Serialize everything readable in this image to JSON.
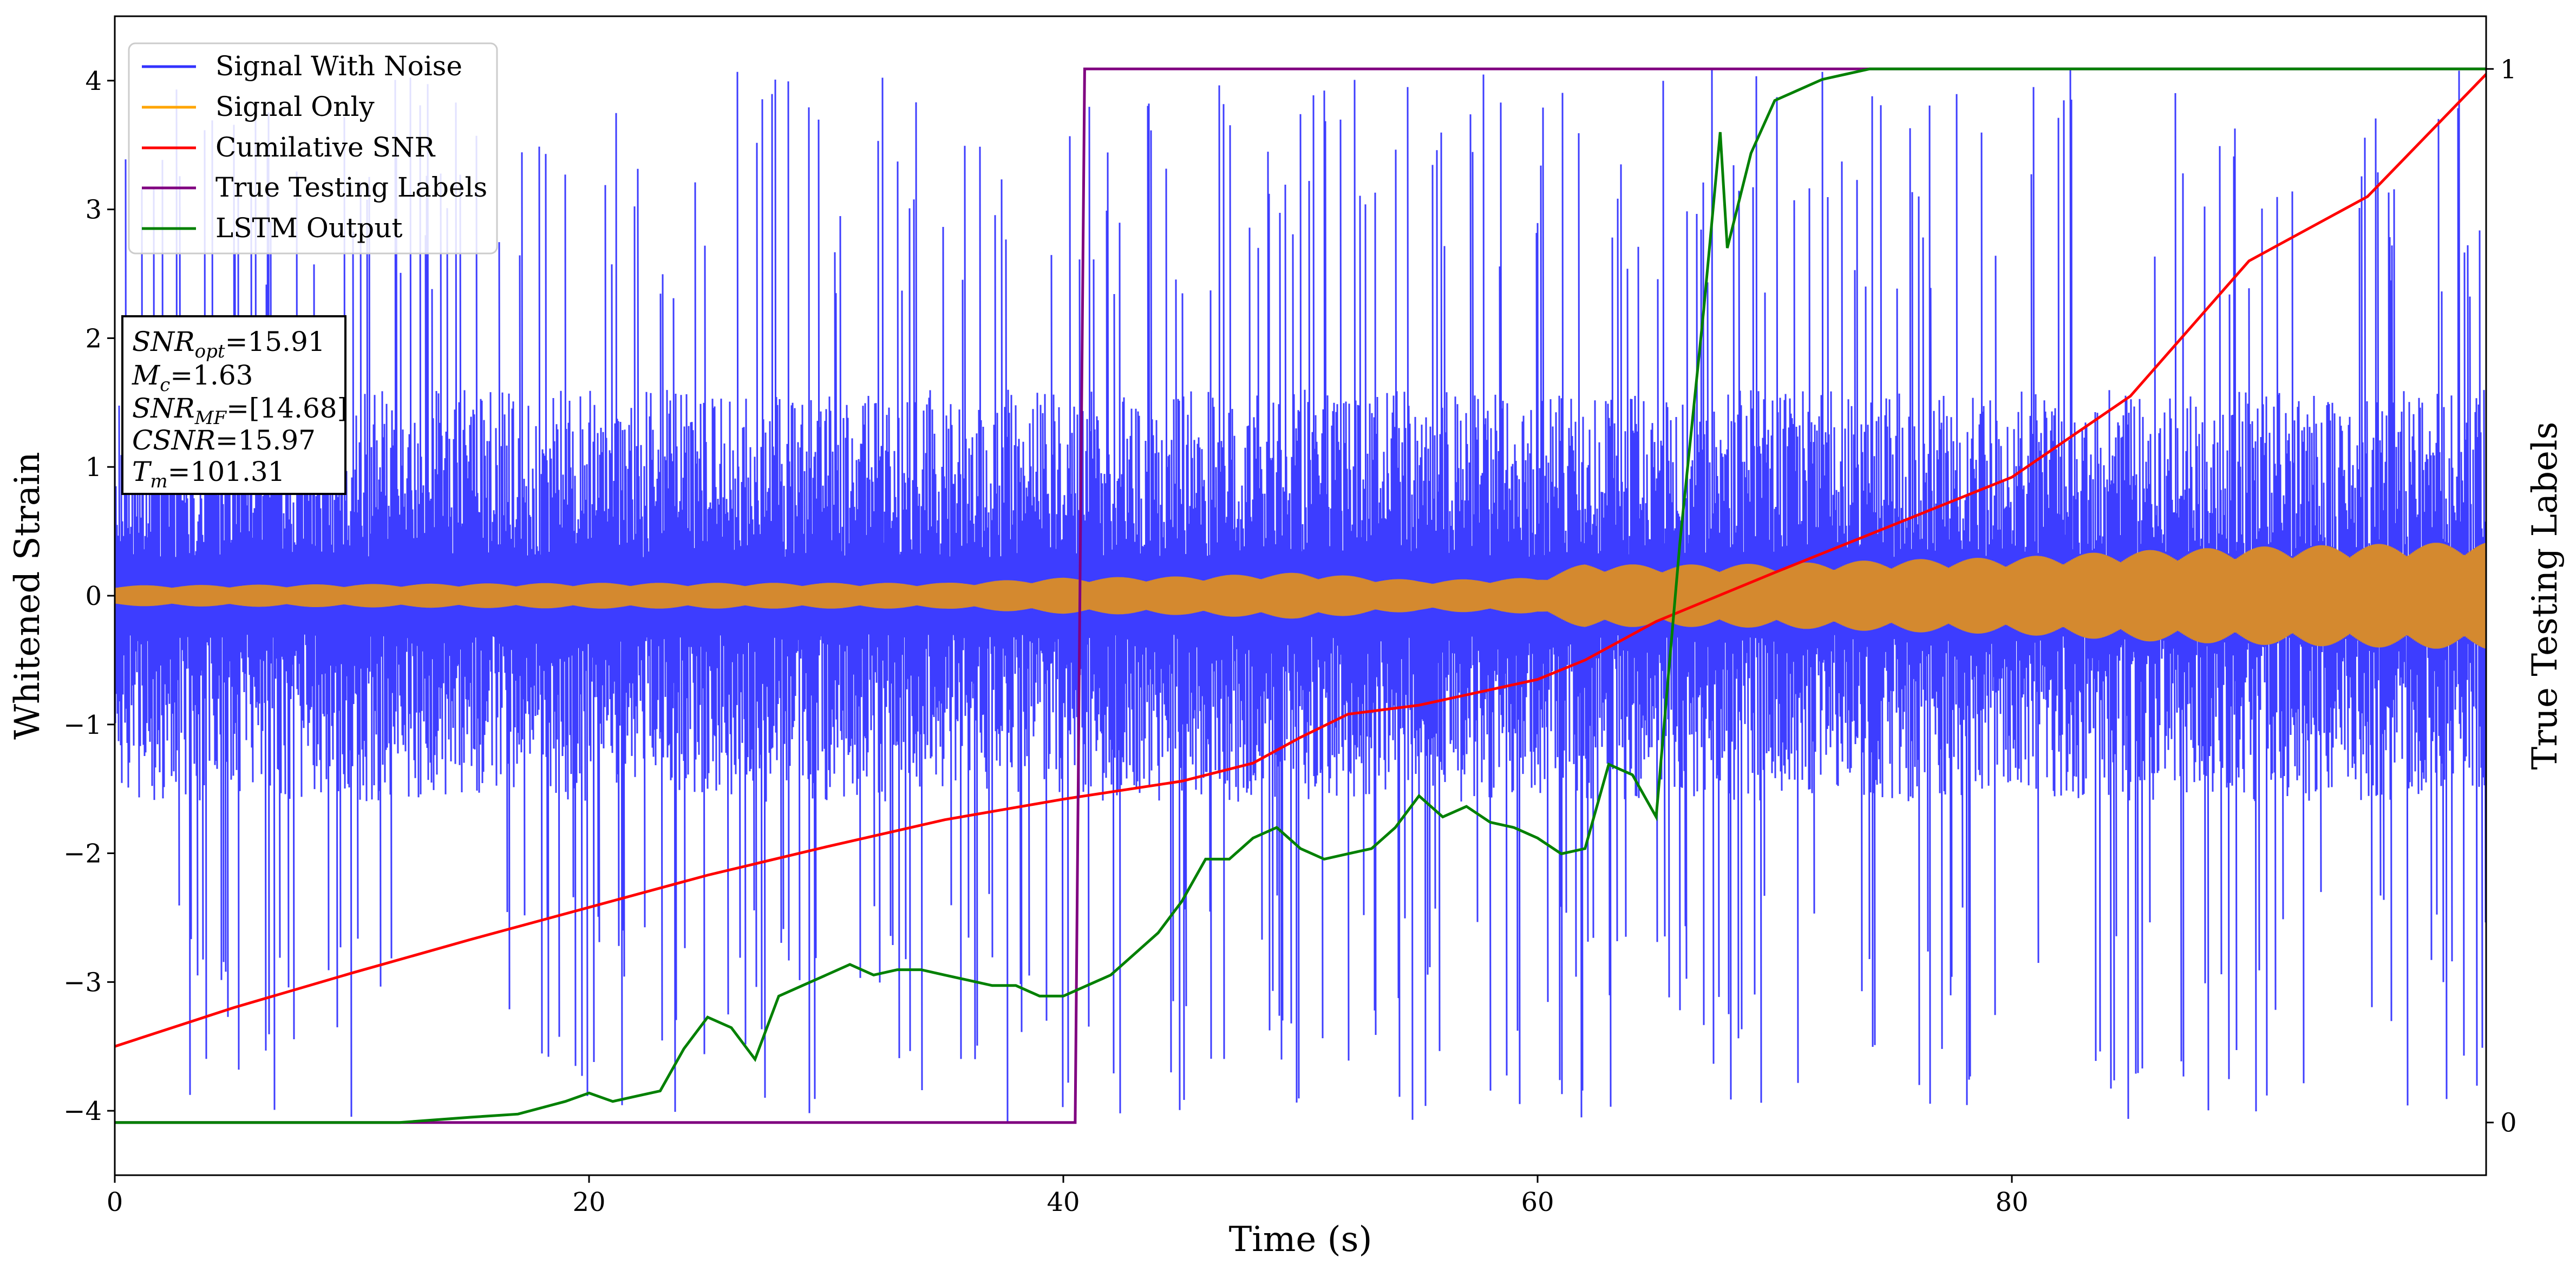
{
  "chart_data": {
    "type": "line",
    "xlabel": "Time (s)",
    "ylabel": "Whitened Strain",
    "y2label": "True Testing Labels",
    "xlim": [
      0,
      100
    ],
    "ylim": [
      -4.5,
      4.5
    ],
    "y2lim": [
      -0.05,
      1.05
    ],
    "x_ticks": [
      0,
      20,
      40,
      60,
      80
    ],
    "x_tick_labels": [
      "0",
      "20",
      "40",
      "60",
      "80"
    ],
    "y_ticks": [
      -4,
      -3,
      -2,
      -1,
      0,
      1,
      2,
      3,
      4
    ],
    "y_tick_labels": [
      "−4",
      "−3",
      "−2",
      "−1",
      "0",
      "1",
      "2",
      "3",
      "4"
    ],
    "y2_ticks": [
      0,
      1
    ],
    "y2_tick_labels": [
      "0",
      "1"
    ],
    "grid": false,
    "legend_position": "top-left",
    "legend": [
      "Signal With Noise",
      "Signal Only",
      "Cumilative SNR",
      "True Testing Labels",
      "LSTM Output"
    ],
    "series": [
      {
        "name": "Signal With Noise",
        "color": "#3333ff",
        "style": "noise",
        "description_values": {
          "core_envelope": 1.0,
          "spike_envelope_min": 2.3,
          "spike_envelope_max": 4.1
        }
      },
      {
        "name": "Signal Only",
        "color": "#d4892f",
        "style": "envelope",
        "x": [
          0,
          10,
          20,
          30,
          35,
          40,
          45,
          50,
          55,
          60,
          62,
          65,
          70,
          75,
          80,
          85,
          90,
          95,
          100
        ],
        "amplitude": [
          0.08,
          0.09,
          0.1,
          0.1,
          0.1,
          0.14,
          0.15,
          0.18,
          0.12,
          0.14,
          0.25,
          0.24,
          0.25,
          0.28,
          0.3,
          0.35,
          0.38,
          0.4,
          0.42
        ]
      },
      {
        "name": "Cumilative SNR",
        "color": "#ff0000",
        "x": [
          0,
          5,
          10,
          15,
          20,
          25,
          30,
          35,
          40,
          45,
          48,
          50,
          52,
          55,
          60,
          62,
          65,
          70,
          75,
          80,
          85,
          90,
          95,
          100
        ],
        "y": [
          -3.5,
          -3.2,
          -2.93,
          -2.67,
          -2.42,
          -2.17,
          -1.95,
          -1.74,
          -1.58,
          -1.44,
          -1.3,
          -1.1,
          -0.92,
          -0.85,
          -0.65,
          -0.5,
          -0.2,
          0.18,
          0.55,
          0.92,
          1.55,
          2.6,
          3.1,
          4.05
        ]
      },
      {
        "name": "True Testing Labels",
        "color": "#800080",
        "axis": "right",
        "x": [
          0,
          40.5,
          40.9,
          100
        ],
        "y": [
          0,
          0,
          1,
          1
        ]
      },
      {
        "name": "LSTM Output",
        "color": "#008000",
        "axis": "right",
        "x": [
          0,
          12,
          15,
          17,
          19,
          20,
          21,
          22,
          23,
          24,
          25,
          26,
          27,
          28,
          29,
          30,
          31,
          32,
          33,
          34,
          35,
          36,
          37,
          38,
          39,
          40,
          41,
          42,
          43,
          44,
          45,
          46,
          47,
          48,
          49,
          50,
          51,
          52,
          53,
          54,
          55,
          56,
          57,
          58,
          59,
          60,
          61,
          62,
          63,
          64,
          65,
          66,
          67,
          67.7,
          68,
          69,
          70,
          71,
          72,
          73,
          74,
          76,
          80,
          100
        ],
        "y": [
          0,
          0,
          0.005,
          0.008,
          0.02,
          0.028,
          0.02,
          0.025,
          0.03,
          0.07,
          0.1,
          0.09,
          0.06,
          0.12,
          0.13,
          0.14,
          0.15,
          0.14,
          0.145,
          0.145,
          0.14,
          0.135,
          0.13,
          0.13,
          0.12,
          0.12,
          0.13,
          0.14,
          0.16,
          0.18,
          0.21,
          0.25,
          0.25,
          0.27,
          0.28,
          0.26,
          0.25,
          0.255,
          0.26,
          0.28,
          0.31,
          0.29,
          0.3,
          0.285,
          0.28,
          0.27,
          0.255,
          0.26,
          0.34,
          0.33,
          0.29,
          0.55,
          0.77,
          0.94,
          0.83,
          0.92,
          0.97,
          0.98,
          0.99,
          0.995,
          1,
          1,
          1,
          1
        ]
      }
    ],
    "annotation": {
      "snr_opt_label": "SNR",
      "snr_opt_sub": "opt",
      "snr_opt_value": "=15.91",
      "mc_label": "M",
      "mc_sub": "c",
      "mc_value": "=1.63",
      "snr_mf_label": "SNR",
      "snr_mf_sub": "MF",
      "snr_mf_value": "=[14.68]",
      "csnr_label": "CSNR",
      "csnr_value": "=15.97",
      "tm_label": "T",
      "tm_sub": "m",
      "tm_value": "=101.31"
    }
  }
}
